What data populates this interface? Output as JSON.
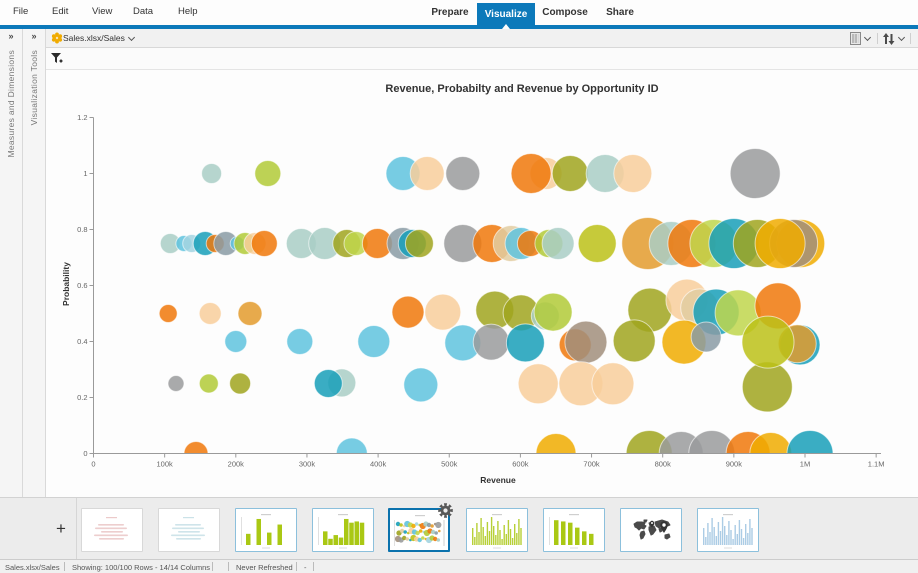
{
  "window": {
    "app": "SAP Lumira"
  },
  "menu": {
    "items": [
      "File",
      "Edit",
      "View",
      "Data",
      "Help"
    ]
  },
  "tabs": [
    {
      "label": "Prepare",
      "active": false
    },
    {
      "label": "Visualize",
      "active": true
    },
    {
      "label": "Compose",
      "active": false
    },
    {
      "label": "Share",
      "active": false
    }
  ],
  "toolbar": {
    "dataset_label": "Sales.xlsx/Sales",
    "dataset_icon": "dataset-hex-icon",
    "right_icons": [
      "grid-view-icon",
      "chevron-down-icon",
      "sort-icon",
      "chevron-down-icon"
    ]
  },
  "sidebars": [
    {
      "label": "Measures and Dimensions",
      "expander": "»"
    },
    {
      "label": "Visualization Tools",
      "expander": "»"
    }
  ],
  "filter": {
    "icon": "filter-funnel-icon"
  },
  "chart_data": {
    "type": "scatter",
    "subtype": "bubble",
    "title": "Revenue, Probabilty and Revenue by Opportunity ID",
    "xlabel": "Revenue",
    "ylabel": "Probability",
    "xlim": [
      0,
      1100
    ],
    "ylim": [
      0,
      1.2
    ],
    "x_unit": "thousands",
    "x_ticks": [
      0,
      100,
      200,
      300,
      400,
      500,
      600,
      700,
      800,
      900,
      1000,
      1100
    ],
    "x_tick_labels": [
      "0",
      "100k",
      "200k",
      "300k",
      "400k",
      "500k",
      "600k",
      "700k",
      "800k",
      "900k",
      "1M",
      "1.1M"
    ],
    "y_ticks": [
      0,
      0.2,
      0.4,
      0.6,
      0.8,
      1,
      1.2
    ],
    "y_tick_labels": [
      "0",
      "0.2",
      "0.4",
      "0.6",
      "0.8",
      "1",
      "1.2"
    ],
    "grid": false,
    "legend": false,
    "palette": {
      "seafoam": "#A9CEC6",
      "sky": "#A3D4E0",
      "cyan": "#5FC3DE",
      "teal": "#189FB8",
      "gray": "#9A9B9C",
      "bluegray": "#8A9BA4",
      "green": "#B2CA37",
      "lime": "#BFD64C",
      "chartreuse": "#BCC117",
      "olive": "#A0A41E",
      "amber": "#E39B2D",
      "orange": "#F0780A",
      "lightorange": "#F0AB00",
      "peach": "#F8CE9B",
      "tan": "#E2CCA1",
      "taupe": "#A18E7B"
    },
    "points": [
      {
        "x": 166,
        "y": 1,
        "r": 10,
        "c": "seafoam"
      },
      {
        "x": 245,
        "y": 1,
        "r": 13,
        "c": "green"
      },
      {
        "x": 435,
        "y": 1,
        "r": 17,
        "c": "cyan"
      },
      {
        "x": 469,
        "y": 1,
        "r": 17,
        "c": "peach"
      },
      {
        "x": 519,
        "y": 1,
        "r": 17,
        "c": "gray"
      },
      {
        "x": 636,
        "y": 1,
        "r": 16,
        "c": "peach"
      },
      {
        "x": 615,
        "y": 1,
        "r": 20,
        "c": "orange"
      },
      {
        "x": 670,
        "y": 1,
        "r": 18,
        "c": "olive"
      },
      {
        "x": 719,
        "y": 1,
        "r": 19,
        "c": "seafoam"
      },
      {
        "x": 758,
        "y": 1,
        "r": 19,
        "c": "peach"
      },
      {
        "x": 930,
        "y": 1,
        "r": 25,
        "c": "gray"
      },
      {
        "x": 108,
        "y": 0.75,
        "r": 10,
        "c": "seafoam"
      },
      {
        "x": 127,
        "y": 0.75,
        "r": 8,
        "c": "cyan"
      },
      {
        "x": 138,
        "y": 0.75,
        "r": 9,
        "c": "sky"
      },
      {
        "x": 157,
        "y": 0.75,
        "r": 12,
        "c": "teal"
      },
      {
        "x": 171,
        "y": 0.75,
        "r": 9,
        "c": "orange"
      },
      {
        "x": 186,
        "y": 0.75,
        "r": 12,
        "c": "bluegray"
      },
      {
        "x": 202,
        "y": 0.75,
        "r": 7,
        "c": "cyan"
      },
      {
        "x": 213,
        "y": 0.75,
        "r": 11,
        "c": "green"
      },
      {
        "x": 227,
        "y": 0.75,
        "r": 11,
        "c": "peach"
      },
      {
        "x": 240,
        "y": 0.75,
        "r": 13,
        "c": "orange"
      },
      {
        "x": 292,
        "y": 0.75,
        "r": 15,
        "c": "seafoam"
      },
      {
        "x": 325,
        "y": 0.75,
        "r": 16,
        "c": "seafoam"
      },
      {
        "x": 356,
        "y": 0.75,
        "r": 14,
        "c": "olive"
      },
      {
        "x": 369,
        "y": 0.75,
        "r": 12,
        "c": "lime"
      },
      {
        "x": 399,
        "y": 0.75,
        "r": 15,
        "c": "orange"
      },
      {
        "x": 435,
        "y": 0.75,
        "r": 16,
        "c": "bluegray"
      },
      {
        "x": 448,
        "y": 0.75,
        "r": 14,
        "c": "teal"
      },
      {
        "x": 458,
        "y": 0.75,
        "r": 14,
        "c": "olive"
      },
      {
        "x": 519,
        "y": 0.75,
        "r": 19,
        "c": "gray"
      },
      {
        "x": 560,
        "y": 0.75,
        "r": 19,
        "c": "orange"
      },
      {
        "x": 587,
        "y": 0.75,
        "r": 18,
        "c": "tan"
      },
      {
        "x": 601,
        "y": 0.75,
        "r": 16,
        "c": "cyan"
      },
      {
        "x": 614,
        "y": 0.75,
        "r": 13,
        "c": "orange"
      },
      {
        "x": 640,
        "y": 0.75,
        "r": 14,
        "c": "green"
      },
      {
        "x": 653,
        "y": 0.75,
        "r": 16,
        "c": "seafoam"
      },
      {
        "x": 708,
        "y": 0.75,
        "r": 19,
        "c": "chartreuse"
      },
      {
        "x": 779,
        "y": 0.75,
        "r": 26,
        "c": "amber"
      },
      {
        "x": 812,
        "y": 0.75,
        "r": 22,
        "c": "seafoam"
      },
      {
        "x": 841,
        "y": 0.75,
        "r": 24,
        "c": "orange"
      },
      {
        "x": 872,
        "y": 0.75,
        "r": 24,
        "c": "lime"
      },
      {
        "x": 900,
        "y": 0.75,
        "r": 25,
        "c": "teal"
      },
      {
        "x": 933,
        "y": 0.75,
        "r": 24,
        "c": "olive"
      },
      {
        "x": 994,
        "y": 0.75,
        "r": 24,
        "c": "lightorange"
      },
      {
        "x": 984,
        "y": 0.75,
        "r": 24,
        "c": "taupe"
      },
      {
        "x": 965,
        "y": 0.75,
        "r": 25,
        "c": "lightorange"
      },
      {
        "x": 105,
        "y": 0.5,
        "r": 9,
        "c": "orange"
      },
      {
        "x": 164,
        "y": 0.5,
        "r": 11,
        "c": "peach"
      },
      {
        "x": 220,
        "y": 0.5,
        "r": 12,
        "c": "amber"
      },
      {
        "x": 442,
        "y": 0.505,
        "r": 16,
        "c": "orange"
      },
      {
        "x": 491,
        "y": 0.505,
        "r": 18,
        "c": "peach"
      },
      {
        "x": 564,
        "y": 0.512,
        "r": 19,
        "c": "olive"
      },
      {
        "x": 601,
        "y": 0.502,
        "r": 18,
        "c": "olive"
      },
      {
        "x": 635,
        "y": 0.491,
        "r": 14,
        "c": "seafoam"
      },
      {
        "x": 646,
        "y": 0.505,
        "r": 19,
        "c": "green"
      },
      {
        "x": 782,
        "y": 0.512,
        "r": 22,
        "c": "olive"
      },
      {
        "x": 834,
        "y": 0.548,
        "r": 21,
        "c": "peach"
      },
      {
        "x": 852,
        "y": 0.52,
        "r": 19,
        "c": "tan"
      },
      {
        "x": 875,
        "y": 0.505,
        "r": 23,
        "c": "teal"
      },
      {
        "x": 906,
        "y": 0.502,
        "r": 23,
        "c": "lime"
      },
      {
        "x": 962,
        "y": 0.527,
        "r": 23,
        "c": "orange"
      },
      {
        "x": 200,
        "y": 0.4,
        "r": 11,
        "c": "cyan"
      },
      {
        "x": 290,
        "y": 0.4,
        "r": 13,
        "c": "cyan"
      },
      {
        "x": 394,
        "y": 0.4,
        "r": 16,
        "c": "cyan"
      },
      {
        "x": 519,
        "y": 0.395,
        "r": 18,
        "c": "cyan"
      },
      {
        "x": 559,
        "y": 0.398,
        "r": 18,
        "c": "gray"
      },
      {
        "x": 607,
        "y": 0.395,
        "r": 19,
        "c": "teal"
      },
      {
        "x": 677,
        "y": 0.388,
        "r": 16,
        "c": "orange"
      },
      {
        "x": 692,
        "y": 0.398,
        "r": 21,
        "c": "taupe"
      },
      {
        "x": 760,
        "y": 0.402,
        "r": 21,
        "c": "olive"
      },
      {
        "x": 830,
        "y": 0.398,
        "r": 22,
        "c": "lightorange"
      },
      {
        "x": 861,
        "y": 0.416,
        "r": 15,
        "c": "bluegray"
      },
      {
        "x": 993,
        "y": 0.388,
        "r": 20,
        "c": "teal"
      },
      {
        "x": 989,
        "y": 0.392,
        "r": 19,
        "c": "amber"
      },
      {
        "x": 947,
        "y": 0.238,
        "r": 25,
        "c": "olive"
      },
      {
        "x": 948,
        "y": 0.398,
        "r": 26,
        "c": "chartreuse"
      },
      {
        "x": 116,
        "y": 0.25,
        "r": 8,
        "c": "gray"
      },
      {
        "x": 162,
        "y": 0.25,
        "r": 9.5,
        "c": "green"
      },
      {
        "x": 206,
        "y": 0.25,
        "r": 10.5,
        "c": "olive"
      },
      {
        "x": 349,
        "y": 0.252,
        "r": 14,
        "c": "seafoam"
      },
      {
        "x": 330,
        "y": 0.25,
        "r": 14,
        "c": "teal"
      },
      {
        "x": 460,
        "y": 0.245,
        "r": 17,
        "c": "cyan"
      },
      {
        "x": 625,
        "y": 0.249,
        "r": 20,
        "c": "peach"
      },
      {
        "x": 685,
        "y": 0.249,
        "r": 22,
        "c": "peach"
      },
      {
        "x": 730,
        "y": 0.249,
        "r": 21,
        "c": "peach"
      },
      {
        "x": 144,
        "y": 0,
        "r": 12,
        "c": "orange"
      },
      {
        "x": 363,
        "y": 0,
        "r": 15.5,
        "c": "cyan"
      },
      {
        "x": 650,
        "y": 0,
        "r": 20,
        "c": "lightorange"
      },
      {
        "x": 781,
        "y": 0,
        "r": 23,
        "c": "olive"
      },
      {
        "x": 826,
        "y": 0,
        "r": 22,
        "c": "gray"
      },
      {
        "x": 869,
        "y": 0,
        "r": 23,
        "c": "gray"
      },
      {
        "x": 920,
        "y": 0,
        "r": 22,
        "c": "orange"
      },
      {
        "x": 952,
        "y": 0,
        "r": 21,
        "c": "lightorange"
      },
      {
        "x": 1007,
        "y": 0,
        "r": 23,
        "c": "teal"
      }
    ]
  },
  "gallery": {
    "add_label": "+",
    "thumbs": [
      {
        "name": "viz-thumbnail-1",
        "kind": "sketch",
        "color": "#e4b3b3",
        "selected": false
      },
      {
        "name": "viz-thumbnail-2",
        "kind": "sketch",
        "color": "#b5d6de",
        "selected": false
      },
      {
        "name": "viz-thumbnail-3",
        "kind": "bars",
        "color": "#aac814",
        "bars": [
          18,
          42,
          20,
          33
        ],
        "selected": false
      },
      {
        "name": "viz-thumbnail-4",
        "kind": "bars",
        "color": "#aac814",
        "bars": [
          22,
          10,
          16,
          12,
          42,
          36,
          38,
          36
        ],
        "selected": false
      },
      {
        "name": "viz-thumbnail-5",
        "kind": "bubbles",
        "selected": true
      },
      {
        "name": "viz-thumbnail-6",
        "kind": "dense-bars",
        "color": "#aac814",
        "selected": false
      },
      {
        "name": "viz-thumbnail-7",
        "kind": "bars",
        "color": "#aac814",
        "bars": [
          40,
          38,
          36,
          28,
          22,
          18
        ],
        "selected": false
      },
      {
        "name": "viz-thumbnail-8",
        "kind": "map",
        "color": "#4a4a4a",
        "selected": false
      },
      {
        "name": "viz-thumbnail-9",
        "kind": "dense-bars",
        "color": "#9cc3e0",
        "selected": false
      }
    ]
  },
  "status": {
    "items": [
      "Sales.xlsx/Sales",
      "Showing: 100/100 Rows - 14/14 Columns",
      "",
      "Never Refreshed",
      "-"
    ]
  }
}
